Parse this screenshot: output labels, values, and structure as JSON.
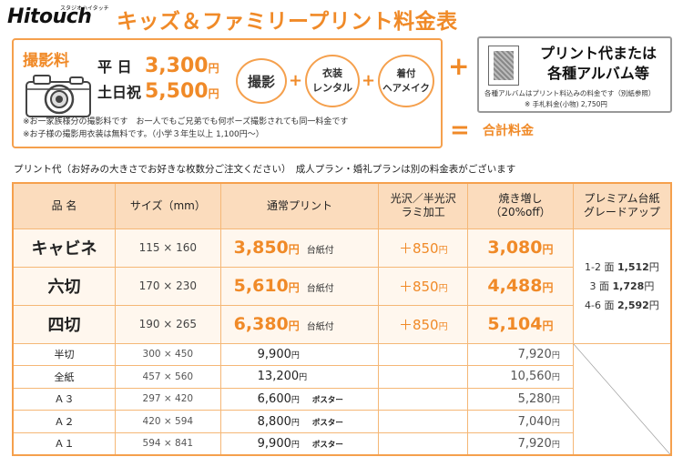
{
  "header": {
    "logo": "Hitouch",
    "logo_sub": "スタジオハイタッチ",
    "title": "キッズ＆ファミリープリント料金表"
  },
  "session": {
    "label": "撮影料",
    "weekday_label": "平 日",
    "weekday_price": "3,300",
    "weekend_label": "土日祝",
    "weekend_price": "5,500",
    "yen": "円",
    "items": [
      "撮影",
      "衣装\nレンタル",
      "着付\nヘアメイク"
    ],
    "plus": "+",
    "note1": "※お一家族様分の撮影料です　お一人でもご兄弟でも何ポーズ撮影されても同一料金です",
    "note2": "※お子様の撮影用衣装は無料です。（小学３年生以上 1,100円〜）"
  },
  "print_box": {
    "title": "プリント代または\n各種アルバム等",
    "note1": "各種アルバムはプリント料込みの料金です（別紙参照）",
    "note2": "※ 手札料金(小物) 2,750円"
  },
  "total_label": "合計料金",
  "big_plus": "+",
  "big_eq": "=",
  "caption": "プリント代（お好みの大きさでお好きな枚数分ご注文ください）　成人プラン・婚礼プランは別の料金表がございます",
  "table": {
    "headers": [
      "品 名",
      "サイズ（mm）",
      "通常プリント",
      "光沢／半光沢\nラミ加工",
      "焼き増し\n（20%off）",
      "プレミアム台紙\nグレードアップ"
    ],
    "main_rows": [
      {
        "name": "キャビネ",
        "size": "115 × 160",
        "price": "3,850",
        "tag": "台紙付",
        "gloss": "＋850",
        "extra": "3,080"
      },
      {
        "name": "六切",
        "size": "170 × 230",
        "price": "5,610",
        "tag": "台紙付",
        "gloss": "＋850",
        "extra": "4,488"
      },
      {
        "name": "四切",
        "size": "190 × 265",
        "price": "6,380",
        "tag": "台紙付",
        "gloss": "＋850",
        "extra": "5,104"
      }
    ],
    "premium": [
      {
        "label": "1-2 面",
        "price": "1,512"
      },
      {
        "label": "3 面",
        "price": "1,728"
      },
      {
        "label": "4-6 面",
        "price": "2,592"
      }
    ],
    "sub_rows": [
      {
        "name": "半切",
        "size": "300 × 450",
        "price": "9,900",
        "tag": "",
        "extra": "7,920"
      },
      {
        "name": "全紙",
        "size": "457 × 560",
        "price": "13,200",
        "tag": "",
        "extra": "10,560"
      },
      {
        "name": "Ａ３",
        "size": "297 × 420",
        "price": "6,600",
        "tag": "ポスター",
        "extra": "5,280"
      },
      {
        "name": "Ａ２",
        "size": "420 × 594",
        "price": "8,800",
        "tag": "ポスター",
        "extra": "7,040"
      },
      {
        "name": "Ａ１",
        "size": "594 × 841",
        "price": "9,900",
        "tag": "ポスター",
        "extra": "7,920"
      }
    ],
    "yen": "円"
  }
}
